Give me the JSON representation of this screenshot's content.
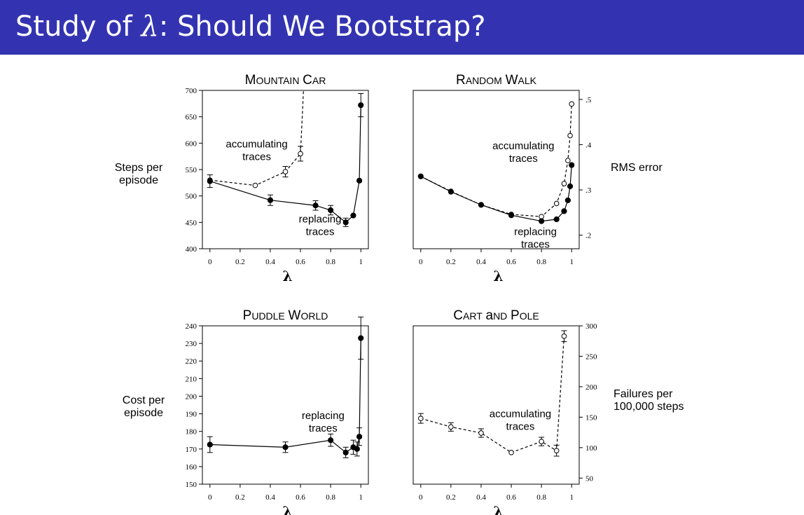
{
  "slide": {
    "title_prefix": "Study of ",
    "title_symbol": "λ",
    "title_suffix": ": Should We Bootstrap?"
  },
  "chart_data": [
    {
      "id": "mountain-car",
      "type": "line",
      "title": "Mountain Car",
      "xlabel": "λ",
      "ylabel": [
        "Steps per",
        "episode"
      ],
      "y_axis_side": "left",
      "xlim": [
        -0.05,
        1.05
      ],
      "ylim": [
        400,
        700
      ],
      "xticks": [
        0,
        0.2,
        0.4,
        0.6,
        0.8,
        1
      ],
      "yticks": [
        400,
        450,
        500,
        550,
        600,
        650,
        700
      ],
      "series": [
        {
          "style": "dashed-open",
          "x": [
            0,
            0.3,
            0.5,
            0.6,
            0.62
          ],
          "y": [
            530,
            520,
            546,
            580,
            700
          ],
          "errors": [
            0,
            0,
            10,
            14,
            0
          ]
        },
        {
          "style": "solid-filled",
          "x": [
            0,
            0.4,
            0.7,
            0.8,
            0.9,
            0.95,
            0.99,
            1
          ],
          "y": [
            528,
            492,
            482,
            473,
            450,
            463,
            529,
            672
          ],
          "errors": [
            12,
            10,
            9,
            9,
            8,
            0,
            0,
            22
          ]
        }
      ],
      "annotations": [
        {
          "lines": [
            "accumulating",
            "traces"
          ],
          "x": 0.31,
          "y": 592
        },
        {
          "lines": [
            "replacing",
            "traces"
          ],
          "x": 0.73,
          "y": 450
        }
      ]
    },
    {
      "id": "random-walk",
      "type": "line",
      "title": "Random Walk",
      "xlabel": "λ",
      "ylabel": [
        "RMS error"
      ],
      "y_axis_side": "right",
      "xlim": [
        -0.05,
        1.05
      ],
      "ylim": [
        0.17,
        0.52
      ],
      "xticks": [
        0,
        0.2,
        0.4,
        0.6,
        0.8,
        1
      ],
      "yticks": [
        0.2,
        0.3,
        0.4,
        0.5
      ],
      "series": [
        {
          "style": "dashed-open",
          "x": [
            0,
            0.2,
            0.4,
            0.6,
            0.8,
            0.9,
            0.95,
            0.975,
            0.99,
            1
          ],
          "y": [
            0.33,
            0.297,
            0.267,
            0.246,
            0.241,
            0.27,
            0.314,
            0.365,
            0.42,
            0.49
          ],
          "errors": []
        },
        {
          "style": "solid-filled",
          "x": [
            0,
            0.2,
            0.4,
            0.6,
            0.8,
            0.9,
            0.95,
            0.975,
            0.99,
            1
          ],
          "y": [
            0.33,
            0.296,
            0.267,
            0.244,
            0.231,
            0.235,
            0.253,
            0.277,
            0.308,
            0.355
          ],
          "errors": []
        }
      ],
      "annotations": [
        {
          "lines": [
            "accumulating",
            "traces"
          ],
          "x": 0.68,
          "y": 0.39
        },
        {
          "lines": [
            "replacing",
            "traces"
          ],
          "x": 0.76,
          "y": 0.2
        }
      ]
    },
    {
      "id": "puddle-world",
      "type": "line",
      "title": "Puddle World",
      "xlabel": "λ",
      "ylabel": [
        "Cost per",
        "episode"
      ],
      "y_axis_side": "left",
      "xlim": [
        -0.05,
        1.05
      ],
      "ylim": [
        150,
        240
      ],
      "xticks": [
        0,
        0.2,
        0.4,
        0.6,
        0.8,
        1
      ],
      "yticks": [
        150,
        160,
        170,
        180,
        190,
        200,
        210,
        220,
        230,
        240
      ],
      "series": [
        {
          "style": "solid-filled",
          "x": [
            0,
            0.5,
            0.8,
            0.9,
            0.95,
            0.975,
            0.99,
            1
          ],
          "y": [
            172.5,
            171,
            175,
            168,
            171,
            170,
            177,
            233
          ],
          "errors": [
            4.5,
            3,
            3.5,
            3,
            4,
            4,
            5,
            12
          ]
        }
      ],
      "annotations": [
        {
          "lines": [
            "replacing",
            "traces"
          ],
          "x": 0.75,
          "y": 187
        }
      ]
    },
    {
      "id": "cart-and-pole",
      "type": "line",
      "title": "Cart and Pole",
      "xlabel": "λ",
      "ylabel": [
        "Failures per",
        "100,000 steps"
      ],
      "y_axis_side": "right",
      "xlim": [
        -0.05,
        1.05
      ],
      "ylim": [
        40,
        300
      ],
      "xticks": [
        0,
        0.2,
        0.4,
        0.6,
        0.8,
        1
      ],
      "yticks": [
        50,
        100,
        150,
        200,
        250,
        300
      ],
      "series": [
        {
          "style": "dashed-open",
          "x": [
            0,
            0.2,
            0.4,
            0.6,
            0.8,
            0.9,
            0.95
          ],
          "y": [
            148,
            134,
            124,
            92,
            110,
            95,
            283
          ],
          "errors": [
            8,
            7,
            7,
            0,
            7,
            9,
            9
          ]
        }
      ],
      "annotations": [
        {
          "lines": [
            "accumulating",
            "traces"
          ],
          "x": 0.66,
          "y": 150
        }
      ]
    }
  ]
}
